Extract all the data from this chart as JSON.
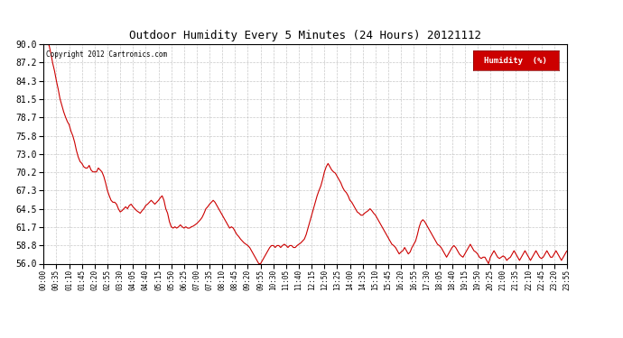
{
  "title": "Outdoor Humidity Every 5 Minutes (24 Hours) 20121112",
  "copyright": "Copyright 2012 Cartronics.com",
  "legend_label": "Humidity  (%)",
  "legend_bg": "#cc0000",
  "legend_fg": "#ffffff",
  "line_color": "#cc0000",
  "bg_color": "#ffffff",
  "grid_color": "#bbbbbb",
  "ylim": [
    56.0,
    90.0
  ],
  "yticks": [
    56.0,
    58.8,
    61.7,
    64.5,
    67.3,
    70.2,
    73.0,
    75.8,
    78.7,
    81.5,
    84.3,
    87.2,
    90.0
  ],
  "xtick_labels": [
    "00:00",
    "00:35",
    "01:10",
    "01:45",
    "02:20",
    "02:55",
    "03:30",
    "04:05",
    "04:40",
    "05:15",
    "05:50",
    "06:25",
    "07:00",
    "07:35",
    "08:10",
    "08:45",
    "09:20",
    "09:55",
    "10:30",
    "11:05",
    "11:40",
    "12:15",
    "12:50",
    "13:25",
    "14:00",
    "14:35",
    "15:10",
    "15:45",
    "16:20",
    "16:55",
    "17:30",
    "18:05",
    "18:40",
    "19:15",
    "19:50",
    "20:25",
    "21:00",
    "21:35",
    "22:10",
    "22:45",
    "23:20",
    "23:55"
  ],
  "humidity_values": [
    90.0,
    90.2,
    90.0,
    89.8,
    88.5,
    87.0,
    85.8,
    84.3,
    83.0,
    81.5,
    80.5,
    79.5,
    78.7,
    78.0,
    77.5,
    76.5,
    75.8,
    74.8,
    73.5,
    72.5,
    71.8,
    71.5,
    71.0,
    70.8,
    70.8,
    71.2,
    70.5,
    70.2,
    70.2,
    70.2,
    70.8,
    70.5,
    70.2,
    69.5,
    68.5,
    67.3,
    66.5,
    65.8,
    65.5,
    65.5,
    65.2,
    64.5,
    64.0,
    64.2,
    64.5,
    64.8,
    64.5,
    65.0,
    65.2,
    64.8,
    64.5,
    64.2,
    64.0,
    63.8,
    64.2,
    64.5,
    65.0,
    65.2,
    65.5,
    65.8,
    65.5,
    65.2,
    65.5,
    65.8,
    66.2,
    66.5,
    65.8,
    64.5,
    63.8,
    62.5,
    61.7,
    61.5,
    61.7,
    61.5,
    61.7,
    62.0,
    61.7,
    61.5,
    61.7,
    61.5,
    61.5,
    61.7,
    61.8,
    62.0,
    62.2,
    62.5,
    62.8,
    63.2,
    63.8,
    64.5,
    64.8,
    65.2,
    65.5,
    65.8,
    65.5,
    65.0,
    64.5,
    64.0,
    63.5,
    63.0,
    62.5,
    62.0,
    61.5,
    61.7,
    61.5,
    61.0,
    60.5,
    60.2,
    59.8,
    59.5,
    59.2,
    59.0,
    58.8,
    58.5,
    58.0,
    57.5,
    57.0,
    56.5,
    56.0,
    56.0,
    56.5,
    57.0,
    57.5,
    58.0,
    58.5,
    58.8,
    58.8,
    58.5,
    58.8,
    58.8,
    58.5,
    58.8,
    59.0,
    58.8,
    58.5,
    58.8,
    58.8,
    58.5,
    58.5,
    58.8,
    59.0,
    59.2,
    59.5,
    59.8,
    60.5,
    61.5,
    62.5,
    63.5,
    64.5,
    65.5,
    66.5,
    67.3,
    68.0,
    69.0,
    70.2,
    71.0,
    71.5,
    71.0,
    70.5,
    70.2,
    70.0,
    69.5,
    69.0,
    68.5,
    67.8,
    67.3,
    67.0,
    66.5,
    65.8,
    65.5,
    65.0,
    64.5,
    64.0,
    63.8,
    63.5,
    63.5,
    63.8,
    64.0,
    64.2,
    64.5,
    64.2,
    63.8,
    63.5,
    63.0,
    62.5,
    62.0,
    61.5,
    61.0,
    60.5,
    60.0,
    59.5,
    59.0,
    58.8,
    58.5,
    58.0,
    57.5,
    57.8,
    58.0,
    58.5,
    58.0,
    57.5,
    57.8,
    58.5,
    59.0,
    59.5,
    60.5,
    61.7,
    62.5,
    62.8,
    62.5,
    62.0,
    61.5,
    61.0,
    60.5,
    60.0,
    59.5,
    59.0,
    58.8,
    58.5,
    58.0,
    57.5,
    57.0,
    57.5,
    58.0,
    58.5,
    58.8,
    58.5,
    58.0,
    57.5,
    57.2,
    57.0,
    57.5,
    58.0,
    58.5,
    59.0,
    58.5,
    58.0,
    57.8,
    57.5,
    57.0,
    56.8,
    57.0,
    57.0,
    56.5,
    56.0,
    57.0,
    57.5,
    58.0,
    57.5,
    57.0,
    56.8,
    57.0,
    57.2,
    57.0,
    56.5,
    56.8,
    57.0,
    57.5,
    58.0,
    57.5,
    57.0,
    56.5,
    57.0,
    57.5,
    58.0,
    57.5,
    57.0,
    56.5,
    57.0,
    57.5,
    58.0,
    57.5,
    57.0,
    56.8,
    57.0,
    57.5,
    58.0,
    57.5,
    57.0,
    57.0,
    57.5,
    58.0,
    57.5,
    57.0,
    56.5,
    57.0,
    57.5,
    58.0,
    57.5,
    57.0
  ]
}
